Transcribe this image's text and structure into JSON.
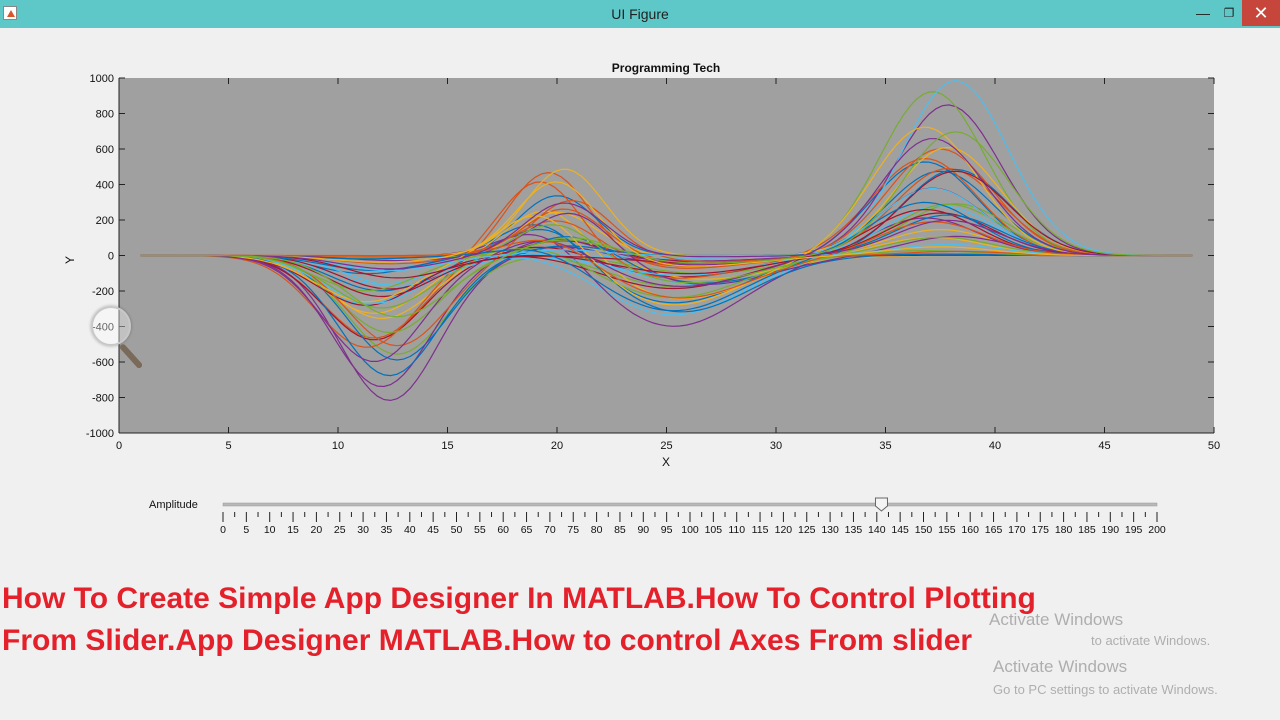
{
  "window": {
    "title": "UI Figure",
    "minimize_glyph": "—",
    "maximize_glyph": "❐",
    "close_glyph": "✕",
    "titlebar_color": "#5ec8c8"
  },
  "plot": {
    "title": "Programming Tech",
    "xlabel": "X",
    "ylabel": "Y",
    "background_color": "#a0a0a0",
    "chart_data": {
      "type": "line",
      "title": "Programming Tech",
      "xlabel": "X",
      "ylabel": "Y",
      "xlim": [
        0,
        50
      ],
      "ylim": [
        -1000,
        1000
      ],
      "x_ticks": [
        0,
        5,
        10,
        15,
        20,
        25,
        30,
        35,
        40,
        45,
        50
      ],
      "y_ticks": [
        1000,
        800,
        600,
        400,
        200,
        0,
        -200,
        -400,
        -600,
        -800,
        -1000
      ],
      "x_range": [
        1,
        49
      ],
      "grid": false,
      "series_count": 40,
      "curve_shape": {
        "components": [
          {
            "center": 12,
            "width": 3.2,
            "amplitude_max": -820
          },
          {
            "center": 20,
            "width": 2.6,
            "amplitude_max": 490
          },
          {
            "center": 26,
            "width": 4.5,
            "amplitude_max": -400
          },
          {
            "center": 37.5,
            "width": 3.4,
            "amplitude_max": 1000
          }
        ]
      }
    }
  },
  "slider": {
    "label": "Amplitude",
    "min": 0,
    "max": 200,
    "value": 141,
    "tick_labels": [
      "0",
      "5",
      "10",
      "15",
      "20",
      "25",
      "30",
      "35",
      "40",
      "45",
      "50",
      "55",
      "60",
      "65",
      "70",
      "75",
      "80",
      "85",
      "90",
      "95",
      "100",
      "105",
      "110",
      "115",
      "120",
      "125",
      "130",
      "135",
      "140",
      "145",
      "150",
      "155",
      "160",
      "165",
      "170",
      "175",
      "180",
      "185",
      "190",
      "195",
      "200"
    ]
  },
  "headline": {
    "line1": "How To Create Simple App Designer In MATLAB.How To Control Plotting",
    "line2": "From Slider.App Designer MATLAB.How to control Axes From slider",
    "color": "#e4202b"
  },
  "watermark": {
    "text1": "Activate Windows",
    "text2": "to activate Windows.",
    "text3": "Activate Windows",
    "text4": "Go to PC settings to activate Windows."
  },
  "series_colors": [
    "#0072bd",
    "#d95319",
    "#edb120",
    "#7e2f8e",
    "#77ac30",
    "#4dbeee",
    "#a2142f"
  ]
}
